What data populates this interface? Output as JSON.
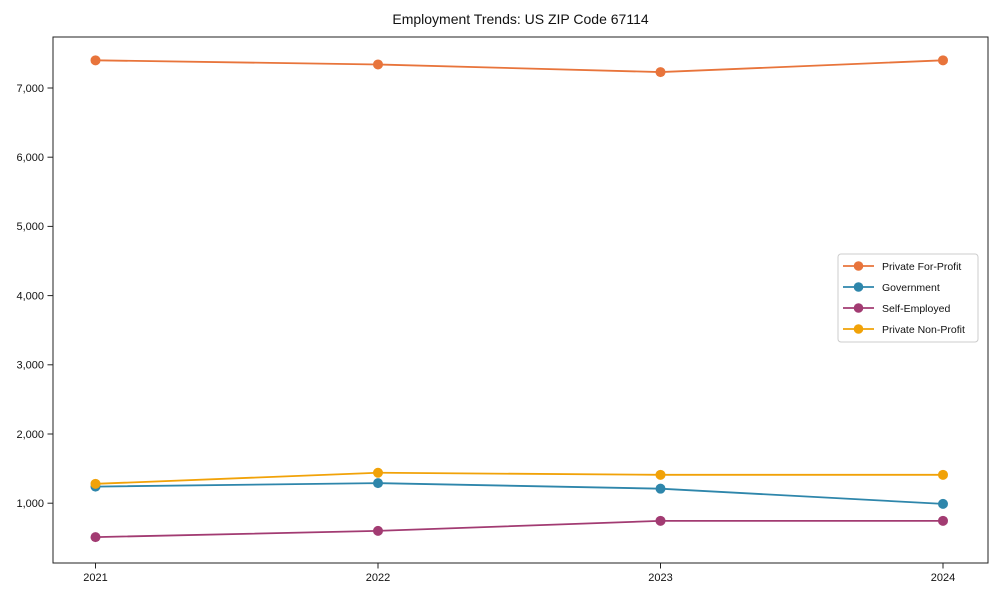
{
  "chart_data": {
    "type": "line",
    "title": "Employment Trends: US ZIP Code 67114",
    "xlabel": "",
    "ylabel": "",
    "x_labels": [
      "2021",
      "2022",
      "2023",
      "2024"
    ],
    "y_ticks": [
      {
        "value": 1000,
        "label": "1,000"
      },
      {
        "value": 2000,
        "label": "2,000"
      },
      {
        "value": 3000,
        "label": "3,000"
      },
      {
        "value": 4000,
        "label": "4,000"
      },
      {
        "value": 5000,
        "label": "5,000"
      },
      {
        "value": 6000,
        "label": "6,000"
      },
      {
        "value": 7000,
        "label": "7,000"
      }
    ],
    "ylim": [
      140,
      7760
    ],
    "grid": false,
    "legend_position": "center-right",
    "series": [
      {
        "name": "Private For-Profit",
        "color": "#E8743B",
        "values": [
          7400,
          7340,
          7230,
          7400
        ]
      },
      {
        "name": "Government",
        "color": "#2E86AB",
        "values": [
          1240,
          1290,
          1210,
          990
        ]
      },
      {
        "name": "Self-Employed",
        "color": "#A23B72",
        "values": [
          510,
          600,
          745,
          745
        ]
      },
      {
        "name": "Private Non-Profit",
        "color": "#F1A208",
        "values": [
          1280,
          1440,
          1410,
          1410
        ]
      }
    ]
  }
}
